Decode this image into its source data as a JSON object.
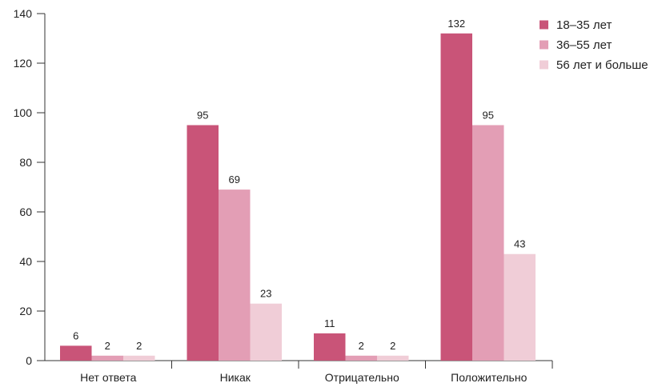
{
  "chart_data": {
    "type": "bar",
    "categories": [
      "Нет ответа",
      "Никак",
      "Отрицательно",
      "Положительно"
    ],
    "series": [
      {
        "name": "18–35 лет",
        "values": [
          6,
          95,
          11,
          132
        ],
        "color": "#c95478"
      },
      {
        "name": "36–55 лет",
        "values": [
          2,
          69,
          2,
          95
        ],
        "color": "#e39eb5"
      },
      {
        "name": "56 лет и больше",
        "values": [
          2,
          23,
          2,
          43
        ],
        "color": "#f0cdd7"
      }
    ],
    "ylim": [
      0,
      140
    ],
    "yticks": [
      0,
      20,
      40,
      60,
      80,
      100,
      120,
      140
    ],
    "grid": false,
    "legend_position": "top-right",
    "axis_color": "#333333"
  }
}
